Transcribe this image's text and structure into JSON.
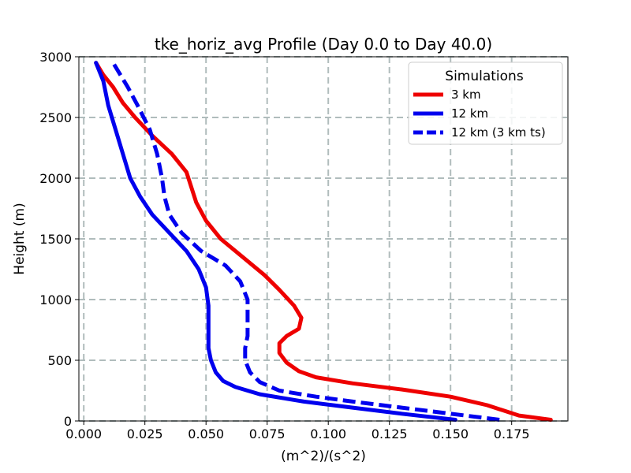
{
  "chart_data": {
    "type": "line",
    "title": "tke_horiz_avg Profile (Day 0.0 to Day 40.0)",
    "xlabel": "(m^2)/(s^2)",
    "ylabel": "Height (m)",
    "xlim": [
      -0.002,
      0.198
    ],
    "ylim": [
      0,
      3000
    ],
    "xticks": [
      0.0,
      0.025,
      0.05,
      0.075,
      0.1,
      0.125,
      0.15,
      0.175
    ],
    "xtick_labels": [
      "0.000",
      "0.025",
      "0.050",
      "0.075",
      "0.100",
      "0.125",
      "0.150",
      "0.175"
    ],
    "yticks": [
      0,
      500,
      1000,
      1500,
      2000,
      2500,
      3000
    ],
    "ytick_labels": [
      "0",
      "500",
      "1000",
      "1500",
      "2000",
      "2500",
      "3000"
    ],
    "grid": true,
    "legend": {
      "title": "Simulations",
      "position": "top-right"
    },
    "series": [
      {
        "name": "3 km",
        "color": "#ee0000",
        "dash": "solid",
        "points": [
          [
            0.191,
            10
          ],
          [
            0.178,
            45
          ],
          [
            0.165,
            130
          ],
          [
            0.15,
            200
          ],
          [
            0.13,
            260
          ],
          [
            0.11,
            310
          ],
          [
            0.095,
            360
          ],
          [
            0.088,
            410
          ],
          [
            0.083,
            480
          ],
          [
            0.08,
            560
          ],
          [
            0.08,
            640
          ],
          [
            0.083,
            700
          ],
          [
            0.088,
            760
          ],
          [
            0.089,
            850
          ],
          [
            0.086,
            950
          ],
          [
            0.08,
            1080
          ],
          [
            0.074,
            1200
          ],
          [
            0.065,
            1350
          ],
          [
            0.056,
            1500
          ],
          [
            0.05,
            1650
          ],
          [
            0.046,
            1800
          ],
          [
            0.042,
            2050
          ],
          [
            0.036,
            2200
          ],
          [
            0.028,
            2350
          ],
          [
            0.021,
            2500
          ],
          [
            0.016,
            2620
          ],
          [
            0.012,
            2750
          ],
          [
            0.008,
            2850
          ],
          [
            0.005,
            2950
          ]
        ]
      },
      {
        "name": "12 km",
        "color": "#0000ee",
        "dash": "solid",
        "points": [
          [
            0.152,
            10
          ],
          [
            0.13,
            60
          ],
          [
            0.11,
            110
          ],
          [
            0.09,
            160
          ],
          [
            0.072,
            220
          ],
          [
            0.062,
            280
          ],
          [
            0.057,
            330
          ],
          [
            0.054,
            400
          ],
          [
            0.052,
            500
          ],
          [
            0.051,
            600
          ],
          [
            0.051,
            700
          ],
          [
            0.051,
            800
          ],
          [
            0.051,
            950
          ],
          [
            0.05,
            1100
          ],
          [
            0.047,
            1250
          ],
          [
            0.042,
            1400
          ],
          [
            0.035,
            1550
          ],
          [
            0.028,
            1700
          ],
          [
            0.023,
            1850
          ],
          [
            0.019,
            2000
          ],
          [
            0.016,
            2200
          ],
          [
            0.013,
            2400
          ],
          [
            0.01,
            2600
          ],
          [
            0.008,
            2800
          ],
          [
            0.005,
            2950
          ]
        ]
      },
      {
        "name": "12 km (3 km ts)",
        "color": "#0000ee",
        "dash": "dashed",
        "points": [
          [
            0.17,
            10
          ],
          [
            0.15,
            60
          ],
          [
            0.13,
            110
          ],
          [
            0.11,
            160
          ],
          [
            0.095,
            200
          ],
          [
            0.08,
            250
          ],
          [
            0.072,
            320
          ],
          [
            0.068,
            400
          ],
          [
            0.066,
            500
          ],
          [
            0.066,
            600
          ],
          [
            0.067,
            700
          ],
          [
            0.067,
            850
          ],
          [
            0.067,
            1000
          ],
          [
            0.064,
            1150
          ],
          [
            0.058,
            1280
          ],
          [
            0.048,
            1400
          ],
          [
            0.04,
            1550
          ],
          [
            0.035,
            1700
          ],
          [
            0.033,
            1850
          ],
          [
            0.032,
            2000
          ],
          [
            0.03,
            2200
          ],
          [
            0.027,
            2400
          ],
          [
            0.022,
            2600
          ],
          [
            0.018,
            2750
          ],
          [
            0.012,
            2950
          ]
        ]
      }
    ]
  }
}
